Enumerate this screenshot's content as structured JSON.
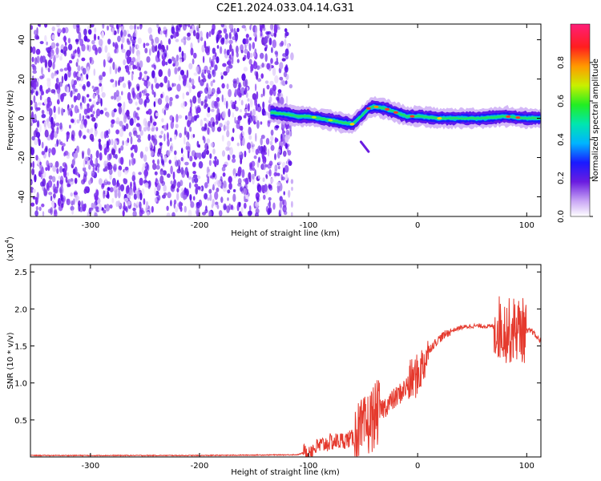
{
  "title": "C2E1.2024.033.04.14.G31",
  "colors": {
    "snr_line": "#e53a2e",
    "axis": "#000000",
    "background": "#ffffff"
  },
  "chart_data": [
    {
      "type": "heatmap",
      "name": "spectrogram",
      "xlabel": "Height of straight line (km)",
      "ylabel": "Frequency (Hz)",
      "xlim": [
        -355,
        113
      ],
      "ylim": [
        -50,
        48
      ],
      "xticks": [
        -300,
        -200,
        -100,
        0,
        100
      ],
      "yticks": [
        -40,
        -20,
        0,
        20,
        40
      ],
      "noise_region_x": [
        -355,
        -115
      ],
      "signal_track": {
        "x": [
          -135,
          -120,
          -110,
          -100,
          -90,
          -80,
          -70,
          -60,
          -50,
          -45,
          -40,
          -30,
          -20,
          -10,
          0,
          20,
          40,
          60,
          80,
          100,
          113
        ],
        "freq": [
          3,
          2,
          1,
          1,
          0,
          -1,
          -2,
          -3,
          2,
          5,
          6,
          5,
          3,
          1,
          1,
          0,
          0,
          0,
          1,
          0,
          0
        ]
      },
      "side_feature": {
        "x": [
          -52,
          -45
        ],
        "freq": [
          -12,
          -17
        ]
      },
      "colorbar": {
        "label": "Normalized spectral amplitude",
        "range": [
          0,
          1
        ],
        "ticks": [
          "0.0",
          "0.2",
          "0.4",
          "0.6",
          "0.8"
        ],
        "tick_values": [
          0.0,
          0.2,
          0.4,
          0.6,
          0.8
        ]
      },
      "grid": false
    },
    {
      "type": "line",
      "name": "snr",
      "xlabel": "Height of straight line (km)",
      "ylabel": "SNR (10 * v/v)",
      "y_multiplier": "(x10",
      "y_multiplier_exp": "4",
      "y_multiplier_close": ")",
      "xlim": [
        -355,
        113
      ],
      "ylim": [
        0,
        2.6
      ],
      "xticks": [
        -300,
        -200,
        -100,
        0,
        100
      ],
      "yticks": [
        0.5,
        1.0,
        1.5,
        2.0,
        2.5
      ],
      "ytick_labels": [
        "0.5",
        "1.0",
        "1.5",
        "2.0",
        "2.5"
      ],
      "series": [
        {
          "x": [
            -355,
            -300,
            -200,
            -110,
            -100,
            -90,
            -80,
            -70,
            -60,
            -55,
            -50,
            -45,
            -40,
            -35,
            -30,
            -20,
            -10,
            -5,
            0,
            5,
            10,
            20,
            30,
            40,
            50,
            60,
            70,
            75,
            80,
            85,
            90,
            95,
            100,
            105,
            110,
            113
          ],
          "y": [
            0.02,
            0.02,
            0.02,
            0.03,
            0.08,
            0.15,
            0.2,
            0.22,
            0.25,
            0.3,
            0.35,
            0.45,
            0.55,
            0.62,
            0.68,
            0.8,
            0.95,
            1.05,
            1.1,
            1.25,
            1.45,
            1.6,
            1.7,
            1.75,
            1.77,
            1.77,
            1.76,
            1.75,
            1.72,
            1.7,
            1.74,
            1.72,
            1.7,
            1.7,
            1.6,
            1.58
          ]
        }
      ],
      "grid": false
    }
  ]
}
